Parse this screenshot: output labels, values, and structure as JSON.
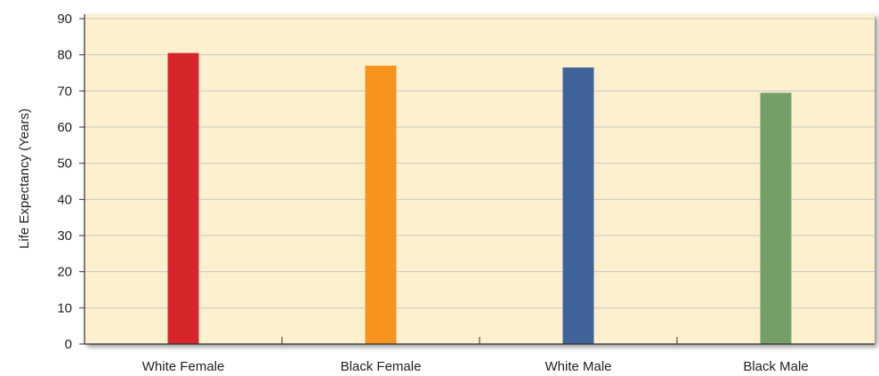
{
  "chart_data": {
    "type": "bar",
    "categories": [
      "White Female",
      "Black Female",
      "White Male",
      "Black Male"
    ],
    "values": [
      80.5,
      77.0,
      76.5,
      69.5
    ],
    "bar_colors": [
      "#d7262b",
      "#f7941e",
      "#3f6299",
      "#74a068"
    ],
    "ylabel": "Life Expectancy (Years)",
    "xlabel": "",
    "ylim": [
      0,
      90
    ],
    "yticks": [
      "0",
      "10",
      "20",
      "30",
      "40",
      "50",
      "60",
      "70",
      "80",
      "90"
    ],
    "grid": true,
    "plot_background": "#fdf0cf",
    "grid_color": "#c8c8c8"
  }
}
